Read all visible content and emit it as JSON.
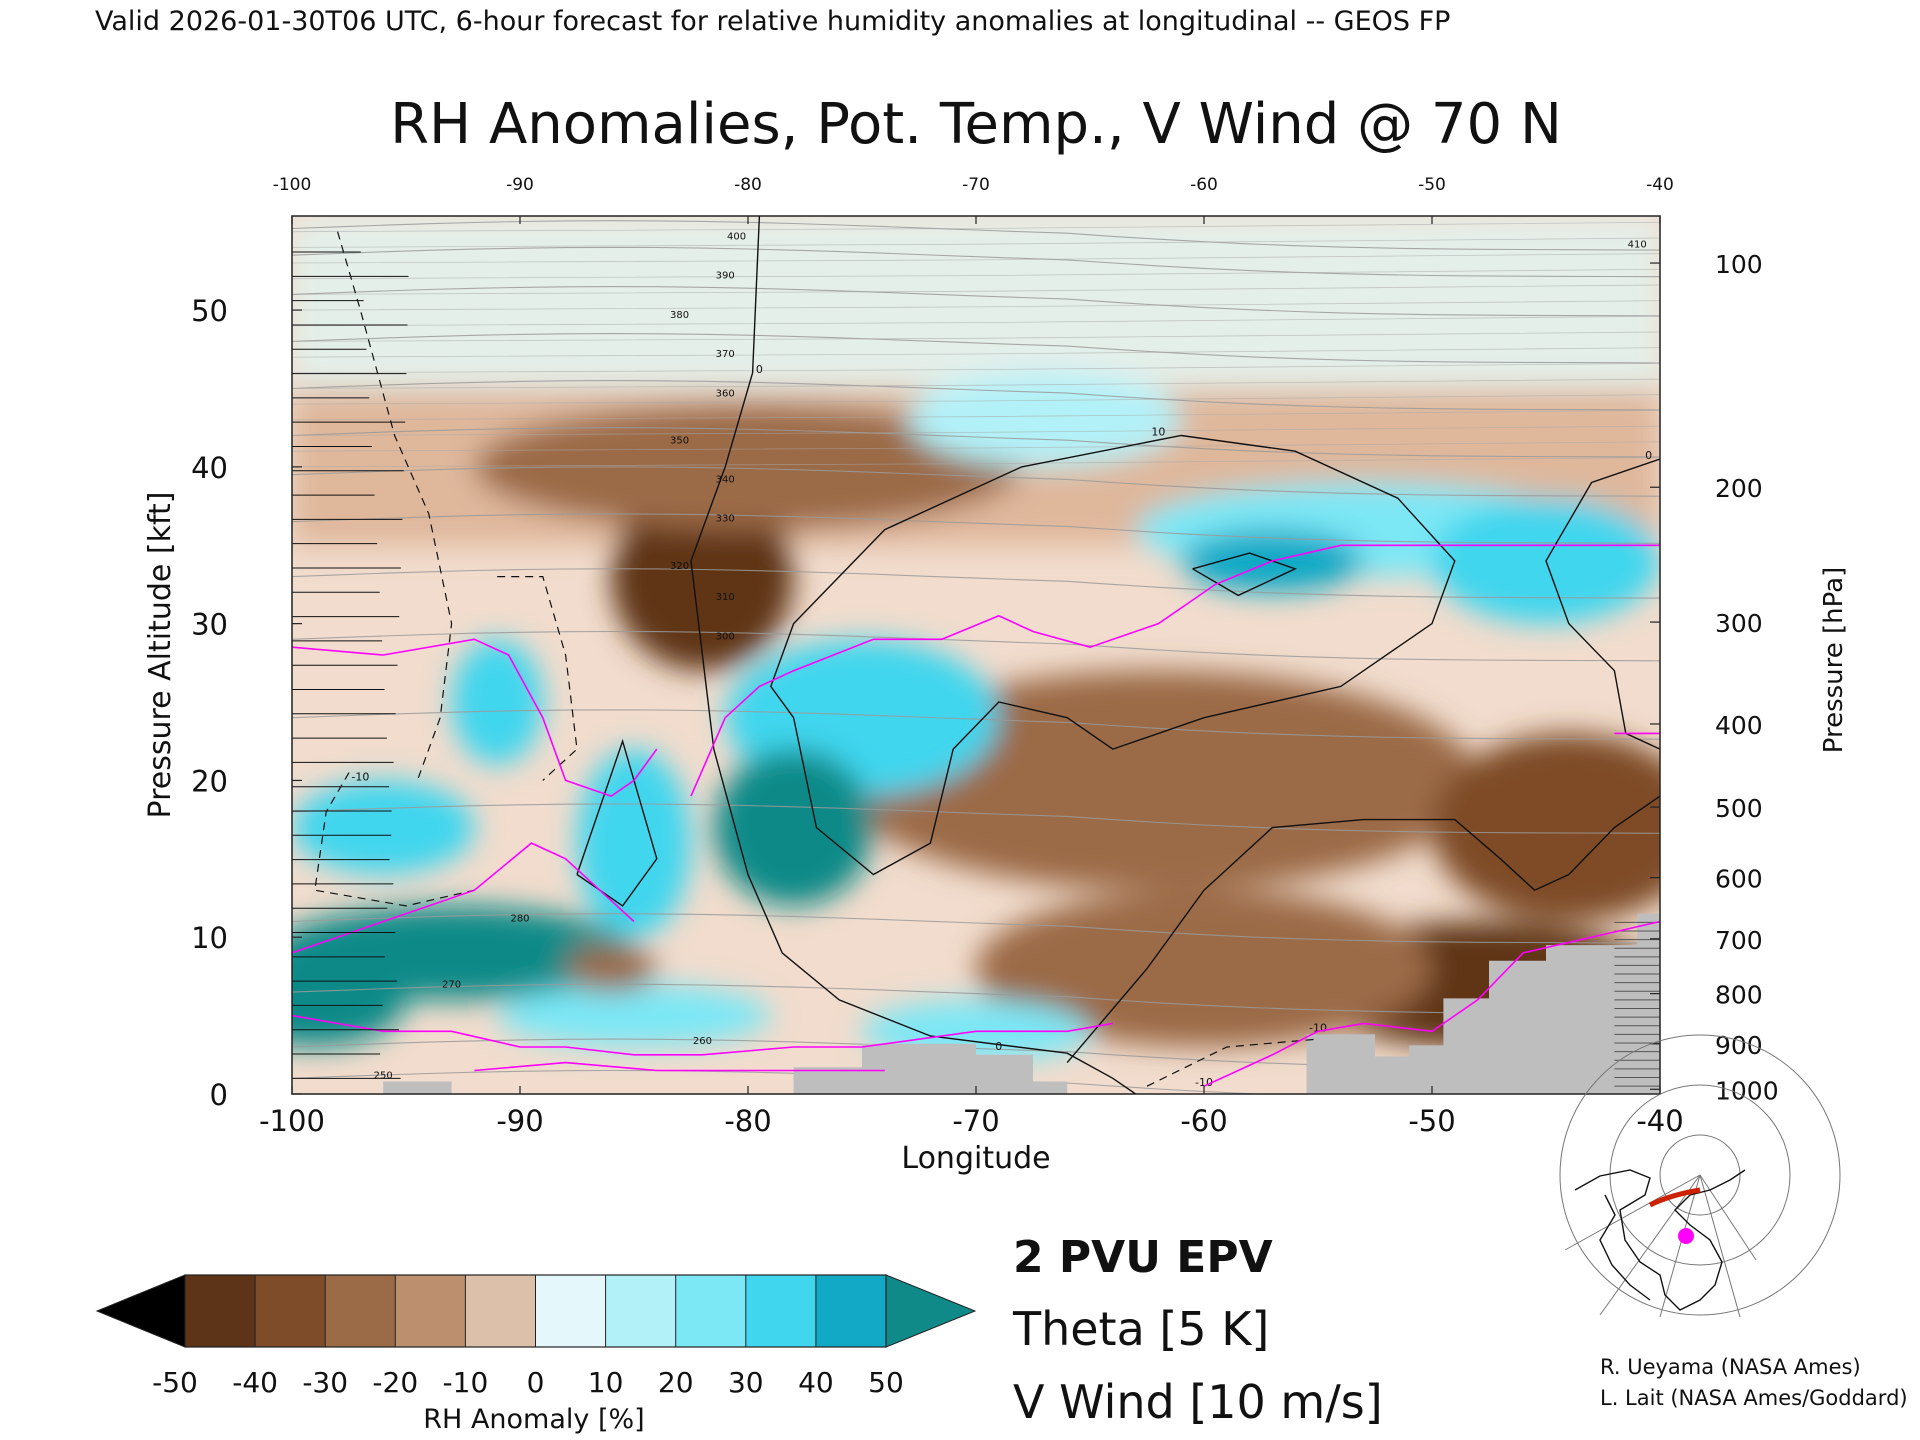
{
  "header": {
    "valid_line": "Valid 2026-01-30T06 UTC, 6-hour forecast for relative humidity anomalies at longitudinal -- GEOS FP",
    "title": "RH Anomalies, Pot. Temp., V Wind @ 70 N"
  },
  "chart_data": {
    "type": "heatmap",
    "title": "RH Anomalies, Pot. Temp., V Wind @ 70 N",
    "xlabel": "Longitude",
    "ylabel": "Pressure Altitude [kft]",
    "y2label": "Pressure [hPa]",
    "xlim": [
      -100,
      -40
    ],
    "ylim": [
      0,
      56
    ],
    "x_ticks": [
      "-100",
      "-90",
      "-80",
      "-70",
      "-60",
      "-50",
      "-40"
    ],
    "x_ticks_top": [
      "-100",
      "-90",
      "-80",
      "-70",
      "-60",
      "-50",
      "-40"
    ],
    "y_ticks": [
      "0",
      "10",
      "20",
      "30",
      "40",
      "50"
    ],
    "y_ticks_vals": [
      0,
      10,
      20,
      30,
      40,
      50
    ],
    "pressure_ticks": [
      {
        "label": "100",
        "kft": 53.0
      },
      {
        "label": "200",
        "kft": 38.7
      },
      {
        "label": "300",
        "kft": 30.1
      },
      {
        "label": "400",
        "kft": 23.6
      },
      {
        "label": "500",
        "kft": 18.3
      },
      {
        "label": "600",
        "kft": 13.8
      },
      {
        "label": "700",
        "kft": 9.9
      },
      {
        "label": "800",
        "kft": 6.4
      },
      {
        "label": "900",
        "kft": 3.2
      },
      {
        "label": "1000",
        "kft": 0.3
      }
    ],
    "colorbar": {
      "label": "RH Anomaly [%]",
      "ticks": [
        "-50",
        "-40",
        "-30",
        "-20",
        "-10",
        "0",
        "10",
        "20",
        "30",
        "40",
        "50"
      ],
      "colors": [
        "#3e1e0a",
        "#5e3418",
        "#7e4c28",
        "#9b6a46",
        "#bc8f6e",
        "#ddc0aa",
        "#e4f8fb",
        "#b2f1f8",
        "#7ce7f5",
        "#3fd6ee",
        "#11a9c6",
        "#0a7f94"
      ],
      "under_color": "#000000",
      "over_color": "#0f8a88"
    },
    "legend": {
      "epv": "2 PVU EPV",
      "theta": "Theta [5 K]",
      "vwind": "V Wind [10 m/s]",
      "epv_color": "#ff00ff",
      "theta_color": "#aaaaaa",
      "vwind_color": "#000000"
    },
    "theta_labels": [
      "250",
      "260",
      "270",
      "280",
      "300",
      "310",
      "320",
      "330",
      "340",
      "350",
      "360",
      "370",
      "380",
      "390",
      "400",
      "410"
    ],
    "vwind_labels": [
      "-10",
      "0",
      "10"
    ],
    "terrain_color": "#bebebe",
    "moist_regions": [
      {
        "center": [
          -96,
          13
        ],
        "rh_anom": 30
      },
      {
        "center": [
          -91,
          8
        ],
        "rh_anom": 50
      },
      {
        "center": [
          -78,
          17
        ],
        "rh_anom": 50
      },
      {
        "center": [
          -75,
          24
        ],
        "rh_anom": 30
      },
      {
        "center": [
          -57,
          34
        ],
        "rh_anom": 30
      },
      {
        "center": [
          -45,
          34
        ],
        "rh_anom": 30
      },
      {
        "center": [
          -85,
          5
        ],
        "rh_anom": 20
      }
    ],
    "dry_regions": [
      {
        "center": [
          -82,
          33
        ],
        "rh_anom": -40
      },
      {
        "center": [
          -50,
          8
        ],
        "rh_anom": -40
      },
      {
        "center": [
          -62,
          20
        ],
        "rh_anom": -20
      },
      {
        "center": [
          -80,
          40
        ],
        "rh_anom": -20
      }
    ]
  },
  "credits": {
    "line1": "R. Ueyama (NASA Ames)",
    "line2": "L. Lait (NASA Ames/Goddard)"
  }
}
